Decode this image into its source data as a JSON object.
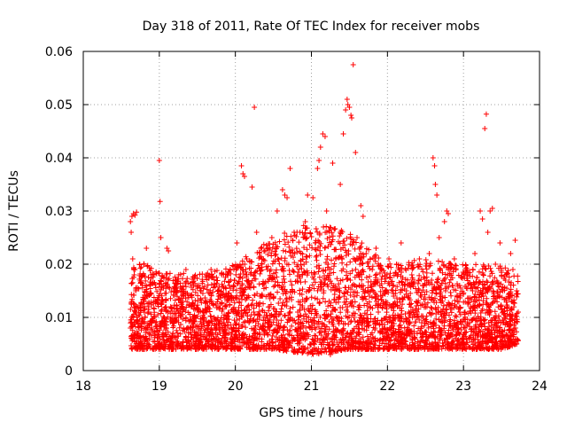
{
  "chart_data": {
    "type": "scatter",
    "title": "Day 318 of 2011, Rate Of TEC Index for receiver mobs",
    "xlabel": "GPS time / hours",
    "ylabel": "ROTI / TECUs",
    "xlim": [
      18,
      24
    ],
    "ylim": [
      0,
      0.06
    ],
    "x_ticks": [
      "18",
      "19",
      "20",
      "21",
      "22",
      "23",
      "24"
    ],
    "y_ticks": [
      "0",
      "0.01",
      "0.02",
      "0.03",
      "0.04",
      "0.05",
      "0.06"
    ],
    "grid": true,
    "marker": "+",
    "color": "#ff0000",
    "series": [
      {
        "points": [
          [
            18.62,
            0.028
          ],
          [
            18.64,
            0.029
          ],
          [
            18.66,
            0.0295
          ],
          [
            18.68,
            0.0292
          ],
          [
            18.7,
            0.0298
          ],
          [
            18.63,
            0.026
          ],
          [
            18.65,
            0.021
          ],
          [
            18.67,
            0.018
          ],
          [
            18.69,
            0.015
          ],
          [
            18.71,
            0.012
          ],
          [
            18.62,
            0.008
          ],
          [
            18.64,
            0.006
          ],
          [
            18.66,
            0.01
          ],
          [
            18.68,
            0.007
          ],
          [
            18.72,
            0.009
          ],
          [
            18.75,
            0.012
          ],
          [
            18.78,
            0.016
          ],
          [
            18.8,
            0.02
          ],
          [
            18.83,
            0.023
          ],
          [
            18.86,
            0.011
          ],
          [
            18.9,
            0.008
          ],
          [
            18.93,
            0.018
          ],
          [
            18.96,
            0.013
          ],
          [
            19.0,
            0.0395
          ],
          [
            19.01,
            0.0318
          ],
          [
            19.02,
            0.025
          ],
          [
            19.05,
            0.016
          ],
          [
            19.08,
            0.009
          ],
          [
            19.1,
            0.023
          ],
          [
            19.12,
            0.0225
          ],
          [
            19.15,
            0.012
          ],
          [
            19.18,
            0.007
          ],
          [
            19.22,
            0.017
          ],
          [
            19.25,
            0.01
          ],
          [
            19.28,
            0.005
          ],
          [
            19.32,
            0.014
          ],
          [
            19.35,
            0.019
          ],
          [
            19.38,
            0.008
          ],
          [
            19.42,
            0.012
          ],
          [
            19.45,
            0.016
          ],
          [
            19.48,
            0.006
          ],
          [
            19.52,
            0.011
          ],
          [
            19.55,
            0.015
          ],
          [
            19.58,
            0.009
          ],
          [
            19.62,
            0.013
          ],
          [
            19.65,
            0.007
          ],
          [
            19.68,
            0.019
          ],
          [
            19.72,
            0.01
          ],
          [
            19.75,
            0.006
          ],
          [
            19.78,
            0.014
          ],
          [
            19.82,
            0.018
          ],
          [
            19.85,
            0.009
          ],
          [
            19.88,
            0.012
          ],
          [
            19.92,
            0.016
          ],
          [
            19.95,
            0.005
          ],
          [
            19.98,
            0.011
          ],
          [
            20.02,
            0.024
          ],
          [
            20.05,
            0.013
          ],
          [
            20.08,
            0.0385
          ],
          [
            20.1,
            0.037
          ],
          [
            20.12,
            0.0365
          ],
          [
            20.15,
            0.018
          ],
          [
            20.18,
            0.009
          ],
          [
            20.22,
            0.0345
          ],
          [
            20.25,
            0.0495
          ],
          [
            20.28,
            0.026
          ],
          [
            20.32,
            0.014
          ],
          [
            20.35,
            0.021
          ],
          [
            20.38,
            0.007
          ],
          [
            20.42,
            0.019
          ],
          [
            20.45,
            0.012
          ],
          [
            20.48,
            0.025
          ],
          [
            20.52,
            0.016
          ],
          [
            20.55,
            0.03
          ],
          [
            20.58,
            0.008
          ],
          [
            20.62,
            0.034
          ],
          [
            20.65,
            0.033
          ],
          [
            20.68,
            0.0325
          ],
          [
            20.72,
            0.038
          ],
          [
            20.75,
            0.015
          ],
          [
            20.78,
            0.022
          ],
          [
            20.82,
            0.011
          ],
          [
            20.85,
            0.026
          ],
          [
            20.88,
            0.018
          ],
          [
            20.92,
            0.028
          ],
          [
            20.95,
            0.033
          ],
          [
            20.98,
            0.005
          ],
          [
            21.02,
            0.0325
          ],
          [
            21.05,
            0.024
          ],
          [
            21.08,
            0.038
          ],
          [
            21.1,
            0.0395
          ],
          [
            21.12,
            0.042
          ],
          [
            21.15,
            0.0445
          ],
          [
            21.18,
            0.044
          ],
          [
            21.2,
            0.03
          ],
          [
            21.22,
            0.02
          ],
          [
            21.25,
            0.003
          ],
          [
            21.28,
            0.039
          ],
          [
            21.32,
            0.021
          ],
          [
            21.35,
            0.01
          ],
          [
            21.38,
            0.035
          ],
          [
            21.42,
            0.0445
          ],
          [
            21.45,
            0.049
          ],
          [
            21.47,
            0.051
          ],
          [
            21.48,
            0.05
          ],
          [
            21.5,
            0.0495
          ],
          [
            21.52,
            0.048
          ],
          [
            21.53,
            0.0475
          ],
          [
            21.55,
            0.0575
          ],
          [
            21.58,
            0.041
          ],
          [
            21.6,
            0.025
          ],
          [
            21.62,
            0.018
          ],
          [
            21.65,
            0.031
          ],
          [
            21.68,
            0.029
          ],
          [
            21.72,
            0.022
          ],
          [
            21.75,
            0.012
          ],
          [
            21.78,
            0.016
          ],
          [
            21.82,
            0.006
          ],
          [
            21.85,
            0.023
          ],
          [
            21.88,
            0.011
          ],
          [
            21.92,
            0.019
          ],
          [
            21.95,
            0.004
          ],
          [
            21.98,
            0.013
          ],
          [
            22.02,
            0.021
          ],
          [
            22.05,
            0.008
          ],
          [
            22.08,
            0.014
          ],
          [
            22.12,
            0.02
          ],
          [
            22.15,
            0.01
          ],
          [
            22.18,
            0.024
          ],
          [
            22.22,
            0.006
          ],
          [
            22.25,
            0.015
          ],
          [
            22.28,
            0.011
          ],
          [
            22.32,
            0.018
          ],
          [
            22.35,
            0.007
          ],
          [
            22.38,
            0.013
          ],
          [
            22.42,
            0.021
          ],
          [
            22.45,
            0.009
          ],
          [
            22.48,
            0.016
          ],
          [
            22.52,
            0.012
          ],
          [
            22.55,
            0.022
          ],
          [
            22.58,
            0.017
          ],
          [
            22.6,
            0.04
          ],
          [
            22.62,
            0.0385
          ],
          [
            22.63,
            0.035
          ],
          [
            22.65,
            0.033
          ],
          [
            22.68,
            0.025
          ],
          [
            22.72,
            0.014
          ],
          [
            22.75,
            0.028
          ],
          [
            22.78,
            0.03
          ],
          [
            22.8,
            0.0295
          ],
          [
            22.82,
            0.018
          ],
          [
            22.85,
            0.008
          ],
          [
            22.88,
            0.021
          ],
          [
            22.92,
            0.013
          ],
          [
            22.95,
            0.016
          ],
          [
            22.98,
            0.006
          ],
          [
            23.02,
            0.011
          ],
          [
            23.05,
            0.019
          ],
          [
            23.08,
            0.009
          ],
          [
            23.12,
            0.015
          ],
          [
            23.15,
            0.022
          ],
          [
            23.18,
            0.012
          ],
          [
            23.22,
            0.03
          ],
          [
            23.25,
            0.0285
          ],
          [
            23.28,
            0.0455
          ],
          [
            23.3,
            0.0482
          ],
          [
            23.32,
            0.026
          ],
          [
            23.35,
            0.03
          ],
          [
            23.38,
            0.0305
          ],
          [
            23.42,
            0.02
          ],
          [
            23.45,
            0.014
          ],
          [
            23.48,
            0.024
          ],
          [
            23.52,
            0.009
          ],
          [
            23.55,
            0.017
          ],
          [
            23.58,
            0.012
          ],
          [
            23.62,
            0.022
          ],
          [
            23.65,
            0.019
          ],
          [
            23.68,
            0.0245
          ],
          [
            23.7,
            0.015
          ],
          [
            23.72,
            0.011
          ]
        ]
      }
    ],
    "dense_band": {
      "x_start": 18.62,
      "x_end": 23.72,
      "samples_per_hour": 800,
      "envelope": [
        [
          18.62,
          0.004,
          0.021
        ],
        [
          19.0,
          0.004,
          0.019
        ],
        [
          19.5,
          0.004,
          0.018
        ],
        [
          20.0,
          0.004,
          0.02
        ],
        [
          20.5,
          0.004,
          0.025
        ],
        [
          21.0,
          0.003,
          0.028
        ],
        [
          21.5,
          0.004,
          0.026
        ],
        [
          22.0,
          0.004,
          0.02
        ],
        [
          22.5,
          0.004,
          0.021
        ],
        [
          23.0,
          0.004,
          0.02
        ],
        [
          23.5,
          0.004,
          0.02
        ],
        [
          23.72,
          0.005,
          0.018
        ]
      ]
    }
  }
}
